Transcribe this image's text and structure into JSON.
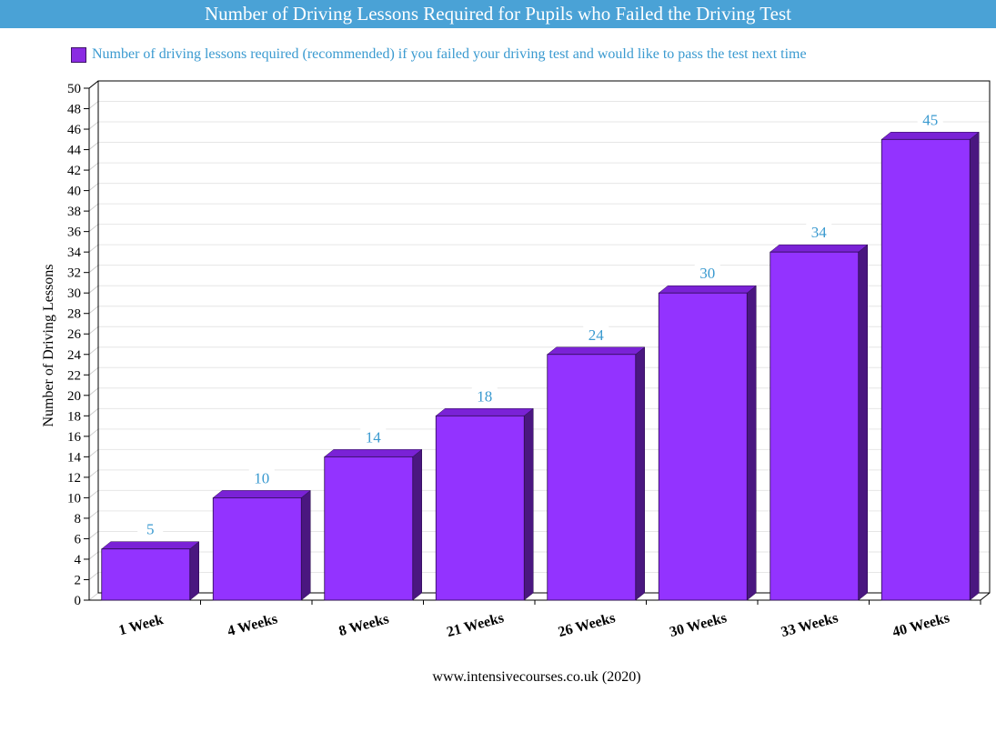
{
  "header": {
    "title": "Number of Driving Lessons Required for Pupils who Failed the Driving Test"
  },
  "footer": {
    "source": "www.intensivecourses.co.uk (2020)"
  },
  "colors": {
    "title_bg": "#4aa2d6",
    "bar_front": "#9333ff",
    "bar_top": "#7a22d6",
    "bar_side": "#4a1780",
    "data_label": "#3a9ad0",
    "legend_text": "#3a9ad0"
  },
  "chart_data": {
    "type": "bar",
    "title": "Number of Driving Lessons Required for Pupils who Failed the Driving Test",
    "ylabel": "Number of Driving Lessons",
    "xlabel": "",
    "categories": [
      "1 Week",
      "4 Weeks",
      "8 Weeks",
      "21 Weeks",
      "26 Weeks",
      "30 Weeks",
      "33 Weeks",
      "40 Weeks"
    ],
    "series": [
      {
        "name": "Number of driving lessons required (recommended) if you failed your driving test and would like to pass the test next time",
        "values": [
          5,
          10,
          14,
          18,
          24,
          30,
          34,
          45
        ]
      }
    ],
    "ylim": [
      0,
      50
    ],
    "ytick_step": 2,
    "grid": true,
    "legend_position": "top-left",
    "data_labels": true,
    "style": "3d"
  }
}
